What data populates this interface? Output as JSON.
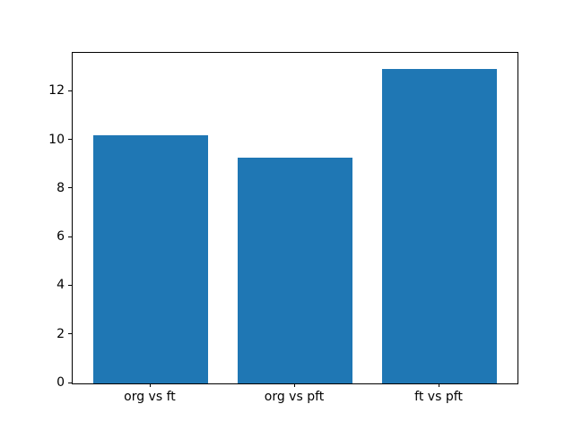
{
  "chart_data": {
    "type": "bar",
    "categories": [
      "org vs ft",
      "org vs pft",
      "ft vs pft"
    ],
    "values": [
      10.2,
      9.3,
      12.95
    ],
    "title": "",
    "xlabel": "",
    "ylabel": "",
    "ylim": [
      0,
      13.6
    ],
    "yticks": [
      0,
      2,
      4,
      6,
      8,
      10,
      12
    ],
    "bar_width_units": 0.8,
    "grid": false,
    "legend": null
  },
  "colors": {
    "bar": "#1f77b4",
    "background": "#ffffff",
    "spine": "#000000",
    "text": "#000000"
  }
}
